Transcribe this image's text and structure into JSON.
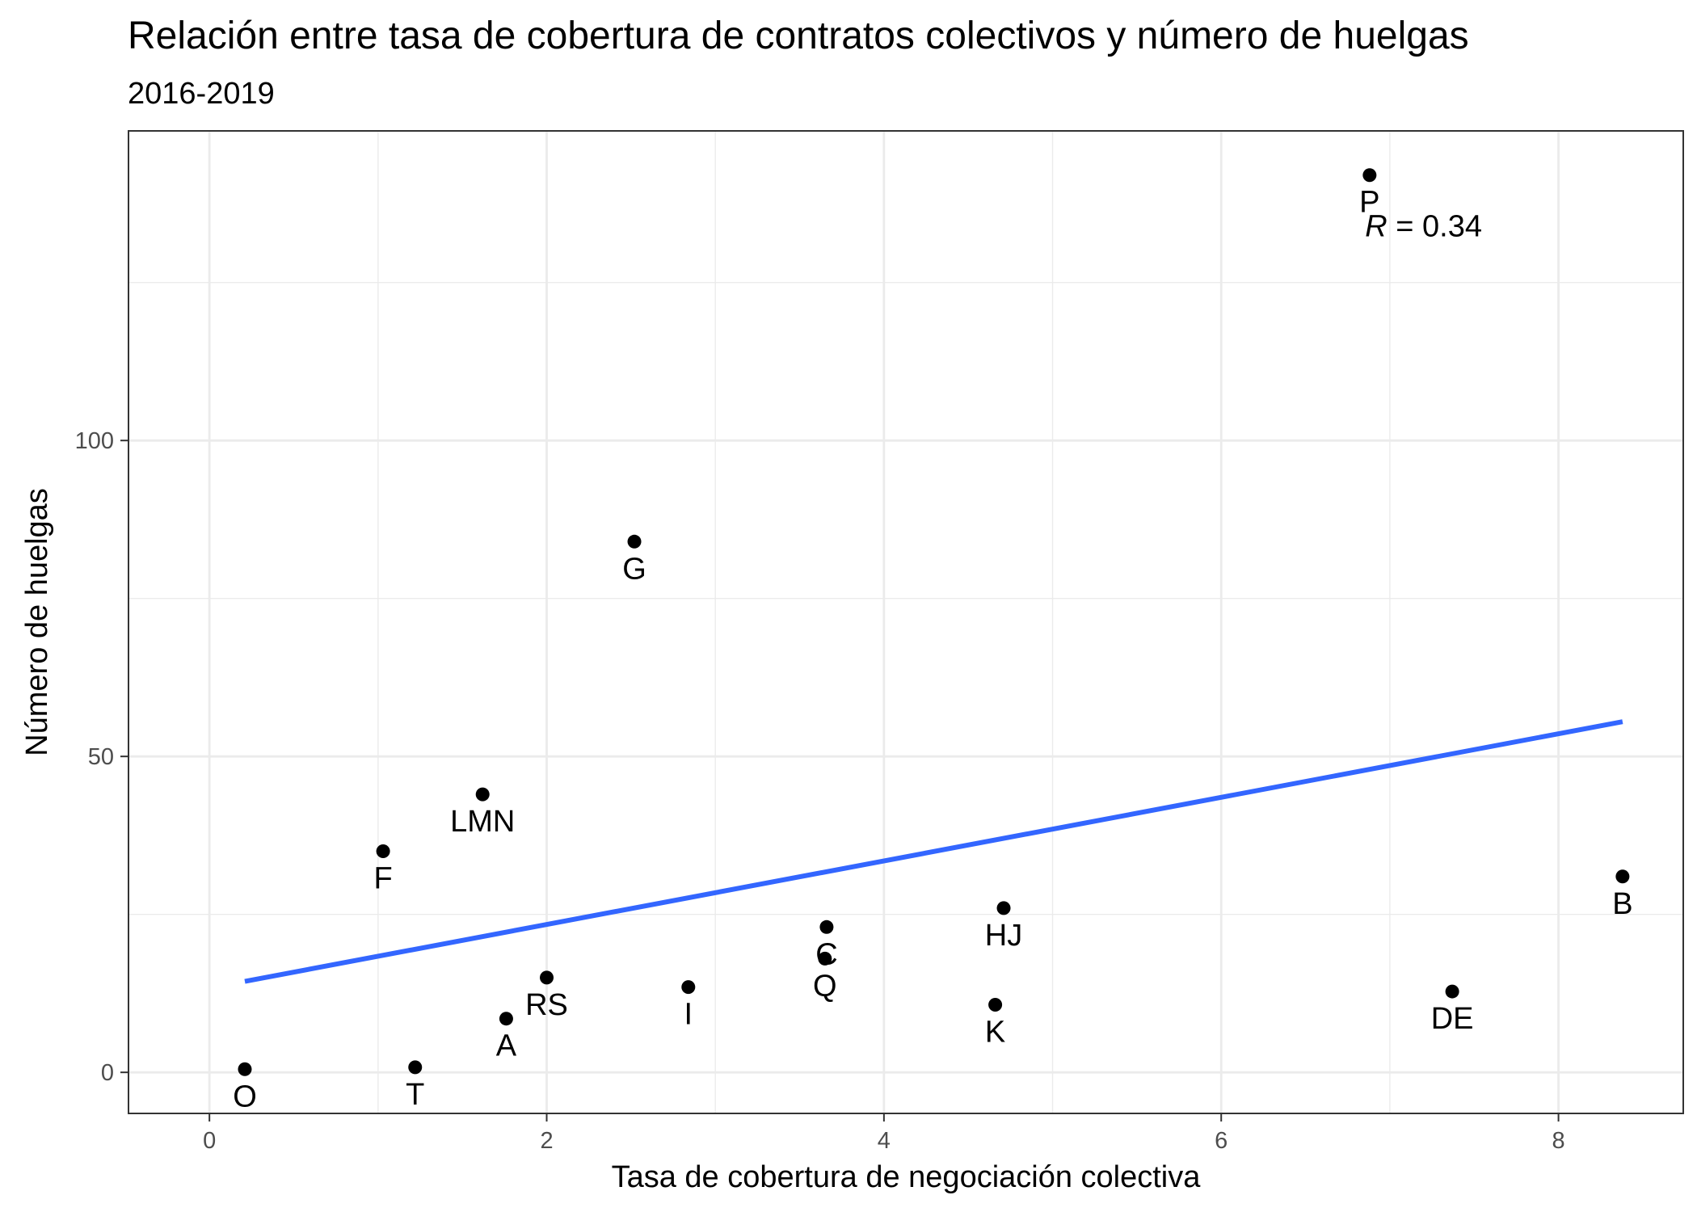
{
  "chart_data": {
    "type": "scatter",
    "title": "Relación entre tasa de cobertura de contratos colectivos y número de huelgas",
    "subtitle": "2016-2019",
    "xlabel": "Tasa de cobertura de negociación colectiva",
    "ylabel": "Número de huelgas",
    "xlim": [
      -0.48,
      8.74
    ],
    "ylim": [
      -6.5,
      149
    ],
    "x_ticks": [
      0,
      2,
      4,
      6,
      8
    ],
    "x_tick_labels": [
      "0",
      "2",
      "4",
      "6",
      "8"
    ],
    "x_minor_ticks": [
      1,
      3,
      5,
      7
    ],
    "y_ticks": [
      0,
      50,
      100
    ],
    "y_tick_labels": [
      "0",
      "50",
      "100"
    ],
    "y_minor_ticks": [
      25,
      75,
      125
    ],
    "grid": true,
    "points": [
      {
        "label": "P",
        "x": 6.88,
        "y": 142
      },
      {
        "label": "G",
        "x": 2.52,
        "y": 84
      },
      {
        "label": "LMN",
        "x": 1.62,
        "y": 44
      },
      {
        "label": "F",
        "x": 1.03,
        "y": 35
      },
      {
        "label": "B",
        "x": 8.38,
        "y": 31
      },
      {
        "label": "HJ",
        "x": 4.71,
        "y": 26
      },
      {
        "label": "C",
        "x": 3.66,
        "y": 23
      },
      {
        "label": "Q",
        "x": 3.65,
        "y": 18
      },
      {
        "label": "RS",
        "x": 2.0,
        "y": 15
      },
      {
        "label": "I",
        "x": 2.84,
        "y": 13.5
      },
      {
        "label": "DE",
        "x": 7.37,
        "y": 12.8
      },
      {
        "label": "K",
        "x": 4.66,
        "y": 10.7
      },
      {
        "label": "A",
        "x": 1.76,
        "y": 8.5
      },
      {
        "label": "T",
        "x": 1.22,
        "y": 0.8
      },
      {
        "label": "O",
        "x": 0.21,
        "y": 0.5
      }
    ],
    "trend_line": {
      "x": [
        0.21,
        8.38
      ],
      "y": [
        14.4,
        55.5
      ],
      "color": "#3366ff"
    },
    "annotation": {
      "prefix": "R",
      "text": " = 0.34",
      "x": 7.2,
      "y": 134
    },
    "colors": {
      "points": "#000000",
      "trend": "#3366ff",
      "grid": "#ebebeb",
      "panel_border": "#333333",
      "tick_label": "#4d4d4d"
    }
  }
}
